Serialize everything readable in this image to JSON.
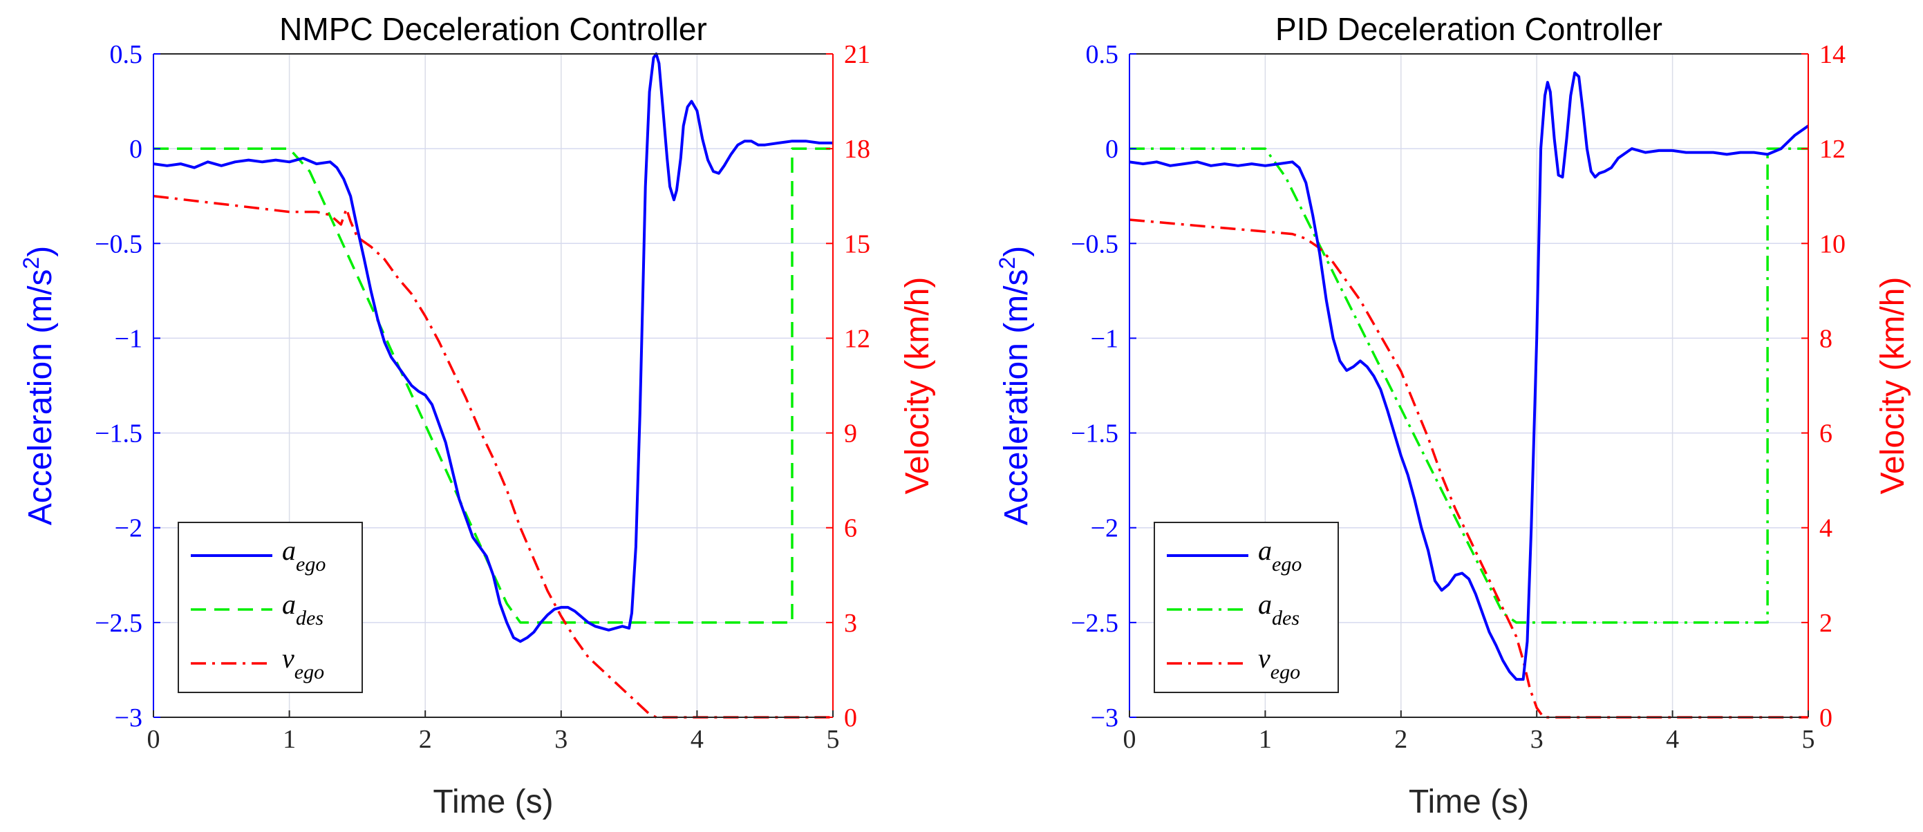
{
  "chart_data": [
    {
      "type": "line",
      "title": "NMPC Deceleration Controller",
      "xlabel": "Time (s)",
      "ylabel_left_main": "Acceleration (m/s",
      "ylabel_left_sup": "2",
      "ylabel_left_close": ")",
      "ylabel_right": "Velocity (km/h)",
      "xlim": [
        0,
        5
      ],
      "ylim_left": [
        -3,
        0.5
      ],
      "ylim_right": [
        0,
        21
      ],
      "grid": true,
      "legend_position": "bottom-left",
      "colors": {
        "left_axis": "#0000ff",
        "right_axis": "#ff0000",
        "a_ego": "#0000ff",
        "a_des": "#00ee00",
        "v_ego": "#ff0000"
      },
      "x_ticks": [
        0,
        1,
        2,
        3,
        4,
        5
      ],
      "x_tick_labels": [
        "0",
        "1",
        "2",
        "3",
        "4",
        "5"
      ],
      "y_left_ticks": [
        0.5,
        0,
        -0.5,
        -1,
        -1.5,
        -2,
        -2.5,
        -3
      ],
      "y_left_tick_labels": [
        "0.5",
        "0",
        "−0.5",
        "−1",
        "−1.5",
        "−2",
        "−2.5",
        "−3"
      ],
      "y_right_ticks": [
        21,
        18,
        15,
        12,
        9,
        6,
        3,
        0
      ],
      "y_right_tick_labels": [
        "21",
        "18",
        "15",
        "12",
        "9",
        "6",
        "3",
        "0"
      ],
      "series": [
        {
          "name": "a_ego",
          "legend_main": "a",
          "legend_sub": "ego",
          "axis": "left",
          "style": "solid",
          "x": [
            0,
            0.1,
            0.2,
            0.3,
            0.4,
            0.5,
            0.6,
            0.7,
            0.8,
            0.9,
            1.0,
            1.1,
            1.2,
            1.3,
            1.35,
            1.4,
            1.45,
            1.5,
            1.55,
            1.6,
            1.65,
            1.7,
            1.75,
            1.8,
            1.85,
            1.9,
            1.95,
            2.0,
            2.05,
            2.1,
            2.15,
            2.2,
            2.25,
            2.3,
            2.35,
            2.4,
            2.45,
            2.5,
            2.55,
            2.6,
            2.65,
            2.7,
            2.75,
            2.8,
            2.85,
            2.9,
            2.95,
            3.0,
            3.05,
            3.1,
            3.15,
            3.2,
            3.25,
            3.3,
            3.35,
            3.4,
            3.45,
            3.5,
            3.52,
            3.55,
            3.58,
            3.6,
            3.62,
            3.65,
            3.68,
            3.7,
            3.72,
            3.75,
            3.78,
            3.8,
            3.83,
            3.85,
            3.88,
            3.9,
            3.93,
            3.96,
            4.0,
            4.04,
            4.08,
            4.12,
            4.16,
            4.2,
            4.25,
            4.3,
            4.35,
            4.4,
            4.45,
            4.5,
            4.6,
            4.7,
            4.8,
            4.9,
            5.0
          ],
          "values": [
            -0.08,
            -0.09,
            -0.08,
            -0.1,
            -0.07,
            -0.09,
            -0.07,
            -0.06,
            -0.07,
            -0.06,
            -0.07,
            -0.05,
            -0.08,
            -0.07,
            -0.1,
            -0.16,
            -0.25,
            -0.42,
            -0.58,
            -0.75,
            -0.9,
            -1.02,
            -1.1,
            -1.15,
            -1.2,
            -1.25,
            -1.28,
            -1.3,
            -1.35,
            -1.45,
            -1.55,
            -1.7,
            -1.85,
            -1.95,
            -2.05,
            -2.1,
            -2.15,
            -2.25,
            -2.4,
            -2.5,
            -2.58,
            -2.6,
            -2.58,
            -2.55,
            -2.5,
            -2.46,
            -2.43,
            -2.42,
            -2.42,
            -2.44,
            -2.47,
            -2.5,
            -2.52,
            -2.53,
            -2.54,
            -2.53,
            -2.52,
            -2.53,
            -2.45,
            -2.1,
            -1.4,
            -0.8,
            -0.2,
            0.3,
            0.48,
            0.5,
            0.45,
            0.2,
            -0.05,
            -0.2,
            -0.27,
            -0.22,
            -0.05,
            0.12,
            0.22,
            0.25,
            0.2,
            0.05,
            -0.06,
            -0.12,
            -0.13,
            -0.09,
            -0.03,
            0.02,
            0.04,
            0.04,
            0.02,
            0.02,
            0.03,
            0.04,
            0.04,
            0.03,
            0.03
          ]
        },
        {
          "name": "a_des",
          "legend_main": "a",
          "legend_sub": "des",
          "axis": "left",
          "style": "dashed",
          "x": [
            0,
            1.0,
            1.15,
            2.6,
            2.7,
            3.0,
            4.0,
            4.7,
            4.7,
            5.0
          ],
          "values": [
            0,
            0,
            -0.12,
            -2.4,
            -2.5,
            -2.5,
            -2.5,
            -2.5,
            0,
            0
          ]
        },
        {
          "name": "v_ego",
          "legend_main": "v",
          "legend_sub": "ego",
          "axis": "right",
          "style": "dashdot",
          "x": [
            0,
            0.2,
            0.4,
            0.6,
            0.8,
            1.0,
            1.2,
            1.3,
            1.38,
            1.42,
            1.45,
            1.5,
            1.6,
            1.7,
            1.8,
            1.9,
            2.0,
            2.1,
            2.2,
            2.3,
            2.4,
            2.5,
            2.6,
            2.7,
            2.8,
            2.9,
            3.0,
            3.1,
            3.2,
            3.3,
            3.4,
            3.5,
            3.55,
            3.6,
            3.65,
            3.7,
            3.8,
            4.0,
            4.5,
            5.0
          ],
          "values": [
            16.5,
            16.4,
            16.3,
            16.2,
            16.1,
            16.0,
            16.0,
            15.9,
            15.6,
            16.1,
            15.7,
            15.2,
            14.9,
            14.5,
            13.9,
            13.4,
            12.7,
            11.9,
            11.0,
            10.1,
            9.1,
            8.2,
            7.2,
            6.0,
            5.0,
            4.0,
            3.2,
            2.5,
            1.9,
            1.5,
            1.1,
            0.7,
            0.5,
            0.3,
            0.1,
            0.0,
            0.0,
            0.0,
            0.0,
            0.0
          ]
        }
      ]
    },
    {
      "type": "line",
      "title": "PID Deceleration Controller",
      "xlabel": "Time (s)",
      "ylabel_left_main": "Acceleration (m/s",
      "ylabel_left_sup": "2",
      "ylabel_left_close": ")",
      "ylabel_right": "Velocity (km/h)",
      "xlim": [
        0,
        5
      ],
      "ylim_left": [
        -3,
        0.5
      ],
      "ylim_right": [
        0,
        14
      ],
      "grid": true,
      "legend_position": "bottom-left",
      "colors": {
        "left_axis": "#0000ff",
        "right_axis": "#ff0000",
        "a_ego": "#0000ff",
        "a_des": "#00ee00",
        "v_ego": "#ff0000"
      },
      "x_ticks": [
        0,
        1,
        2,
        3,
        4,
        5
      ],
      "x_tick_labels": [
        "0",
        "1",
        "2",
        "3",
        "4",
        "5"
      ],
      "y_left_ticks": [
        0.5,
        0,
        -0.5,
        -1,
        -1.5,
        -2,
        -2.5,
        -3
      ],
      "y_left_tick_labels": [
        "0.5",
        "0",
        "−0.5",
        "−1",
        "−1.5",
        "−2",
        "−2.5",
        "−3"
      ],
      "y_right_ticks": [
        14,
        12,
        10,
        8,
        6,
        4,
        2,
        0
      ],
      "y_right_tick_labels": [
        "14",
        "12",
        "10",
        "8",
        "6",
        "4",
        "2",
        "0"
      ],
      "series": [
        {
          "name": "a_ego",
          "legend_main": "a",
          "legend_sub": "ego",
          "axis": "left",
          "style": "solid",
          "x": [
            0,
            0.1,
            0.2,
            0.3,
            0.4,
            0.5,
            0.6,
            0.7,
            0.8,
            0.9,
            1.0,
            1.1,
            1.2,
            1.25,
            1.3,
            1.35,
            1.4,
            1.45,
            1.5,
            1.55,
            1.6,
            1.65,
            1.7,
            1.75,
            1.8,
            1.85,
            1.9,
            1.95,
            2.0,
            2.05,
            2.1,
            2.15,
            2.2,
            2.25,
            2.3,
            2.35,
            2.4,
            2.45,
            2.5,
            2.55,
            2.6,
            2.65,
            2.7,
            2.75,
            2.8,
            2.85,
            2.9,
            2.93,
            2.96,
            3.0,
            3.03,
            3.06,
            3.08,
            3.1,
            3.13,
            3.16,
            3.19,
            3.22,
            3.25,
            3.28,
            3.31,
            3.34,
            3.37,
            3.4,
            3.43,
            3.46,
            3.5,
            3.55,
            3.6,
            3.7,
            3.8,
            3.9,
            4.0,
            4.1,
            4.2,
            4.3,
            4.4,
            4.5,
            4.6,
            4.7,
            4.8,
            4.9,
            5.0
          ],
          "values": [
            -0.07,
            -0.08,
            -0.07,
            -0.09,
            -0.08,
            -0.07,
            -0.09,
            -0.08,
            -0.09,
            -0.08,
            -0.09,
            -0.08,
            -0.07,
            -0.1,
            -0.18,
            -0.35,
            -0.55,
            -0.8,
            -1.0,
            -1.12,
            -1.17,
            -1.15,
            -1.12,
            -1.15,
            -1.2,
            -1.27,
            -1.38,
            -1.5,
            -1.62,
            -1.72,
            -1.85,
            -2.0,
            -2.12,
            -2.28,
            -2.33,
            -2.3,
            -2.25,
            -2.24,
            -2.27,
            -2.35,
            -2.45,
            -2.55,
            -2.62,
            -2.7,
            -2.76,
            -2.8,
            -2.8,
            -2.6,
            -2.0,
            -1.0,
            0.0,
            0.28,
            0.35,
            0.3,
            0.05,
            -0.14,
            -0.15,
            0.05,
            0.28,
            0.4,
            0.38,
            0.2,
            0.0,
            -0.12,
            -0.15,
            -0.13,
            -0.12,
            -0.1,
            -0.05,
            0.0,
            -0.02,
            -0.01,
            -0.01,
            -0.02,
            -0.02,
            -0.02,
            -0.03,
            -0.02,
            -0.02,
            -0.03,
            0.0,
            0.07,
            0.12
          ]
        },
        {
          "name": "a_des",
          "legend_main": "a",
          "legend_sub": "des",
          "axis": "left",
          "style": "dashdot",
          "x": [
            0,
            1.0,
            1.15,
            2.75,
            2.85,
            3.0,
            4.0,
            4.7,
            4.7,
            5.0
          ],
          "values": [
            0,
            0,
            -0.15,
            -2.45,
            -2.5,
            -2.5,
            -2.5,
            -2.5,
            0,
            0
          ]
        },
        {
          "name": "v_ego",
          "legend_main": "v",
          "legend_sub": "ego",
          "axis": "right",
          "style": "dashdot",
          "x": [
            0,
            0.2,
            0.4,
            0.6,
            0.8,
            1.0,
            1.2,
            1.3,
            1.4,
            1.5,
            1.6,
            1.7,
            1.8,
            1.9,
            2.0,
            2.1,
            2.2,
            2.3,
            2.4,
            2.5,
            2.6,
            2.7,
            2.8,
            2.85,
            2.9,
            2.95,
            3.0,
            3.05,
            3.1,
            3.5,
            4.0,
            5.0
          ],
          "values": [
            10.5,
            10.45,
            10.4,
            10.35,
            10.3,
            10.25,
            10.2,
            10.1,
            9.9,
            9.6,
            9.2,
            8.8,
            8.3,
            7.8,
            7.3,
            6.6,
            5.9,
            5.1,
            4.4,
            3.8,
            3.2,
            2.6,
            2.0,
            1.7,
            1.2,
            0.6,
            0.2,
            0.0,
            0.0,
            0.0,
            0.0,
            0.0
          ]
        }
      ]
    }
  ]
}
